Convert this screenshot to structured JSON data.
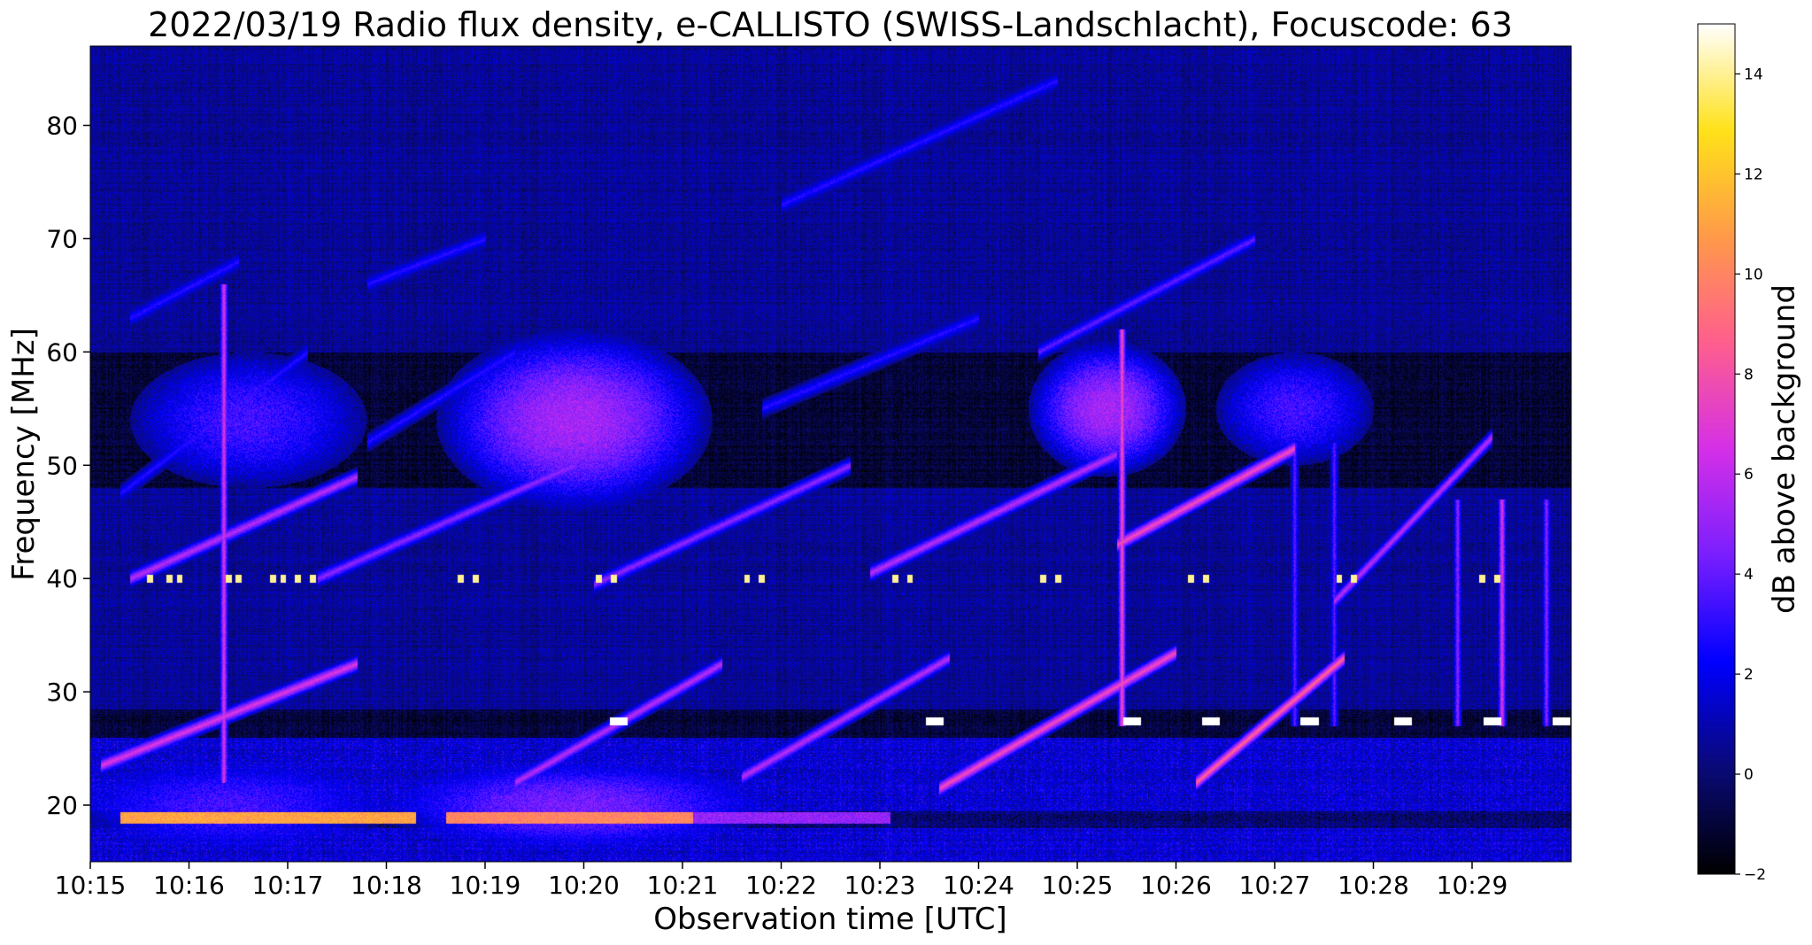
{
  "chart_data": {
    "type": "heatmap",
    "title": "2022/03/19  Radio flux density, e-CALLISTO (SWISS-Landschlacht), Focuscode: 63",
    "xlabel": "Observation time [UTC]",
    "ylabel": "Frequency [MHz]",
    "colorbar_label": "dB above background",
    "x_ticks": [
      "10:15",
      "10:16",
      "10:17",
      "10:18",
      "10:19",
      "10:20",
      "10:21",
      "10:22",
      "10:23",
      "10:24",
      "10:25",
      "10:26",
      "10:27",
      "10:28",
      "10:29"
    ],
    "x_range_minutes": [
      0,
      15
    ],
    "y_ticks": [
      20,
      30,
      40,
      50,
      60,
      70,
      80
    ],
    "ylim": [
      15,
      87
    ],
    "colorbar_ticks": [
      -2,
      0,
      2,
      4,
      6,
      8,
      10,
      12,
      14
    ],
    "colorbar_range": [
      -2,
      15
    ],
    "colormap": [
      "#000000",
      "#0a0a78",
      "#0000ff",
      "#7a1fff",
      "#d530e8",
      "#ff5f8f",
      "#ff9a4a",
      "#ffe21a",
      "#ffffff"
    ],
    "background_level_db": 0,
    "features": {
      "drifting_stripes": [
        {
          "t_start": 0.1,
          "f_start": 23.5,
          "t_end": 2.7,
          "f_end": 32.5,
          "db": 7
        },
        {
          "t_start": 4.3,
          "f_start": 22.0,
          "t_end": 6.4,
          "f_end": 32.5,
          "db": 6
        },
        {
          "t_start": 6.6,
          "f_start": 22.5,
          "t_end": 8.7,
          "f_end": 33.0,
          "db": 6
        },
        {
          "t_start": 8.6,
          "f_start": 21.5,
          "t_end": 11.0,
          "f_end": 33.5,
          "db": 8
        },
        {
          "t_start": 11.2,
          "f_start": 22.0,
          "t_end": 12.7,
          "f_end": 33.0,
          "db": 9
        },
        {
          "t_start": 0.4,
          "f_start": 40.0,
          "t_end": 2.7,
          "f_end": 49.0,
          "db": 6
        },
        {
          "t_start": 2.3,
          "f_start": 40.0,
          "t_end": 4.9,
          "f_end": 50.0,
          "db": 5
        },
        {
          "t_start": 5.1,
          "f_start": 39.5,
          "t_end": 7.7,
          "f_end": 50.0,
          "db": 5
        },
        {
          "t_start": 7.9,
          "f_start": 40.5,
          "t_end": 10.4,
          "f_end": 51.0,
          "db": 6
        },
        {
          "t_start": 10.4,
          "f_start": 43.0,
          "t_end": 12.2,
          "f_end": 51.5,
          "db": 8
        },
        {
          "t_start": 12.6,
          "f_start": 38.0,
          "t_end": 14.2,
          "f_end": 52.5,
          "db": 6
        },
        {
          "t_start": 0.3,
          "f_start": 47.5,
          "t_end": 2.2,
          "f_end": 60.0,
          "db": 3
        },
        {
          "t_start": 2.8,
          "f_start": 52.0,
          "t_end": 4.3,
          "f_end": 60.0,
          "db": 3
        },
        {
          "t_start": 6.8,
          "f_start": 55.0,
          "t_end": 9.0,
          "f_end": 63.0,
          "db": 3
        },
        {
          "t_start": 9.6,
          "f_start": 60.0,
          "t_end": 11.8,
          "f_end": 70.0,
          "db": 4
        },
        {
          "t_start": 0.4,
          "f_start": 63.0,
          "t_end": 1.5,
          "f_end": 68.0,
          "db": 3
        },
        {
          "t_start": 2.8,
          "f_start": 66.0,
          "t_end": 4.0,
          "f_end": 70.0,
          "db": 3
        },
        {
          "t_start": 7.0,
          "f_start": 73.0,
          "t_end": 9.8,
          "f_end": 84.0,
          "db": 3
        }
      ],
      "vertical_bursts": [
        {
          "t": 1.35,
          "f_low": 22,
          "f_high": 66,
          "db": 7
        },
        {
          "t": 10.45,
          "f_low": 27,
          "f_high": 62,
          "db": 8
        },
        {
          "t": 12.2,
          "f_low": 27,
          "f_high": 52,
          "db": 4
        },
        {
          "t": 12.6,
          "f_low": 27,
          "f_high": 52,
          "db": 4
        },
        {
          "t": 13.85,
          "f_low": 27,
          "f_high": 47,
          "db": 5
        },
        {
          "t": 14.3,
          "f_low": 27,
          "f_high": 47,
          "db": 7
        },
        {
          "t": 14.75,
          "f_low": 27,
          "f_high": 47,
          "db": 5
        }
      ],
      "diffuse_clouds": [
        {
          "t": 1.6,
          "f": 54,
          "dt": 1.2,
          "df": 6,
          "db": 3
        },
        {
          "t": 4.9,
          "f": 54,
          "dt": 1.4,
          "df": 8,
          "db": 5
        },
        {
          "t": 10.3,
          "f": 55,
          "dt": 0.8,
          "df": 6,
          "db": 5
        },
        {
          "t": 12.2,
          "f": 55,
          "dt": 0.8,
          "df": 5,
          "db": 3
        },
        {
          "t": 4.9,
          "f": 20,
          "dt": 2.0,
          "df": 4,
          "db": 4
        },
        {
          "t": 1.4,
          "f": 20,
          "dt": 1.6,
          "df": 4,
          "db": 3
        }
      ],
      "bright_bands": [
        {
          "t_start": 0.3,
          "t_end": 3.3,
          "f": 18.9,
          "db": 11
        },
        {
          "t_start": 3.6,
          "t_end": 6.1,
          "f": 18.9,
          "db": 10
        },
        {
          "t_start": 6.1,
          "t_end": 8.1,
          "f": 18.9,
          "db": 5
        }
      ],
      "rfi_dots_40mhz_minutes": [
        0.6,
        0.8,
        0.9,
        1.4,
        1.5,
        1.85,
        1.95,
        2.1,
        2.25,
        3.75,
        3.9,
        5.15,
        5.3,
        6.65,
        6.8,
        8.15,
        8.3,
        9.65,
        9.8,
        11.15,
        11.3,
        12.65,
        12.8,
        14.1,
        14.25
      ],
      "rfi_dashes_27mhz_minutes": [
        5.35,
        8.55,
        10.55,
        11.35,
        12.35,
        13.3,
        14.2,
        14.9
      ],
      "quiet_bands_mhz": [
        [
          26.0,
          28.5
        ],
        [
          48.0,
          60.0
        ],
        [
          18.0,
          19.5
        ]
      ]
    }
  }
}
